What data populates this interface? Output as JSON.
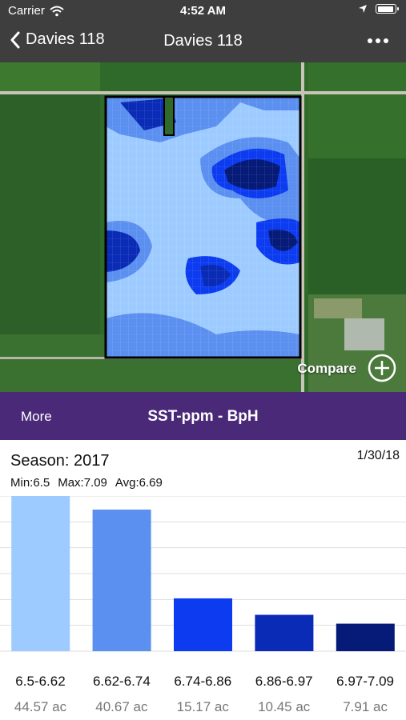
{
  "status_bar": {
    "carrier": "Carrier",
    "time": "4:52 AM"
  },
  "nav": {
    "back_label": "Davies 118",
    "title": "Davies 118"
  },
  "map": {
    "compare_label": "Compare"
  },
  "layer_bar": {
    "more_label": "More",
    "title": "SST-ppm - BpH"
  },
  "info": {
    "season": "Season: 2017",
    "date": "1/30/18",
    "min": "Min:6.5",
    "max": "Max:7.09",
    "avg": "Avg:6.69"
  },
  "colors": {
    "header_bg": "#3e3e3e",
    "layer_bar_bg": "#4a2a78",
    "bin_colors": [
      "#9ecbff",
      "#5b8ff0",
      "#0d3cf0",
      "#0a2bb5",
      "#061a78"
    ]
  },
  "chart_data": {
    "type": "bar",
    "categories": [
      "6.5-6.62",
      "6.62-6.74",
      "6.74-6.86",
      "6.86-6.97",
      "6.97-7.09"
    ],
    "value_labels": [
      "44.57 ac",
      "40.67 ac",
      "15.17 ac",
      "10.45 ac",
      "7.91 ac"
    ],
    "values": [
      44.57,
      40.67,
      15.17,
      10.45,
      7.91
    ],
    "ylim": [
      0,
      44.57
    ],
    "grid": true
  }
}
